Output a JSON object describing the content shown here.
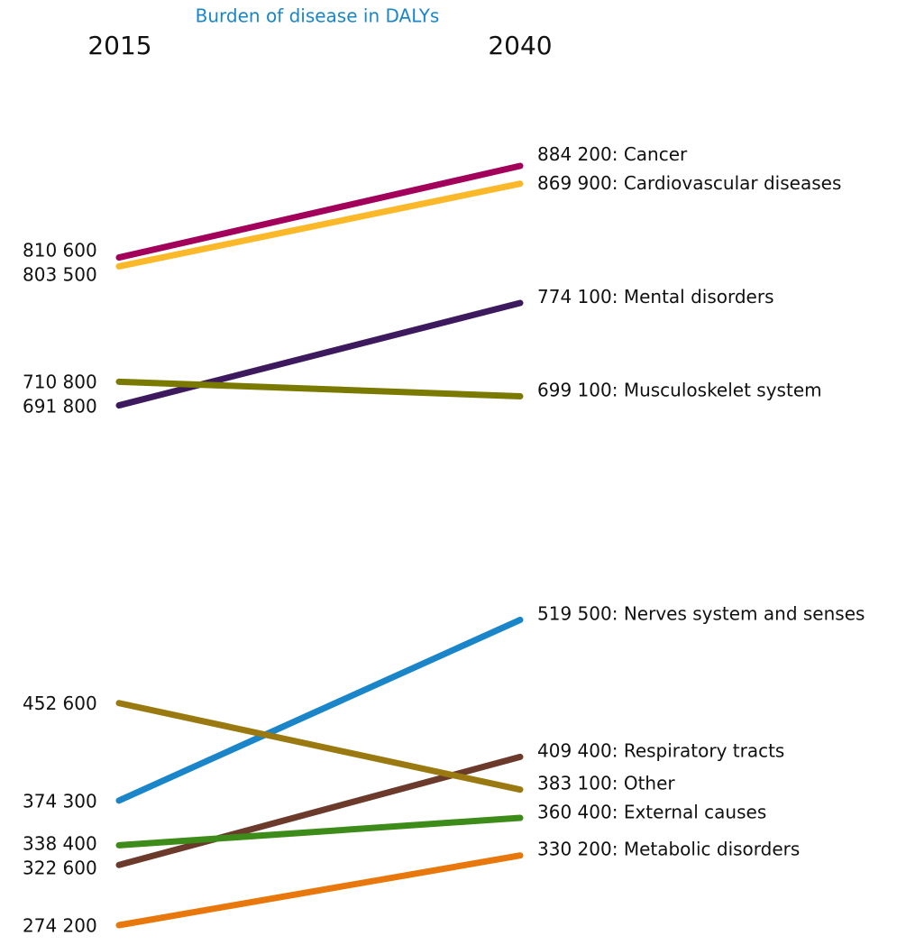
{
  "chart_data": {
    "type": "slope",
    "title": "Burden of disease in DALYs",
    "title_color": "#1a85c8",
    "categories": [
      "2015",
      "2040"
    ],
    "ylim": [
      274200,
      884200
    ],
    "label_separator": ": ",
    "series": [
      {
        "name": "Cancer",
        "color": "#a3005c",
        "values": [
          810600,
          884200
        ],
        "value_labels": [
          "810 600",
          "884 200"
        ]
      },
      {
        "name": "Cardiovascular diseases",
        "color": "#fbb829",
        "values": [
          803500,
          869900
        ],
        "value_labels": [
          "803 500",
          "869 900"
        ]
      },
      {
        "name": "Mental disorders",
        "color": "#3d1a5e",
        "values": [
          691800,
          774100
        ],
        "value_labels": [
          "691 800",
          "774 100"
        ]
      },
      {
        "name": "Musculoskelet system",
        "color": "#7a7a00",
        "values": [
          710800,
          699100
        ],
        "value_labels": [
          "710 800",
          "699 100"
        ]
      },
      {
        "name": "Nerves system and senses",
        "color": "#1a85c8",
        "values": [
          374300,
          519500
        ],
        "value_labels": [
          "374 300",
          "519 500"
        ]
      },
      {
        "name": "Respiratory tracts",
        "color": "#6b3a2a",
        "values": [
          322600,
          409400
        ],
        "value_labels": [
          "322 600",
          "409 400"
        ]
      },
      {
        "name": "Other",
        "color": "#9a7a10",
        "values": [
          452600,
          383100
        ],
        "value_labels": [
          "452 600",
          "383 100"
        ]
      },
      {
        "name": "External causes",
        "color": "#3d8c1a",
        "values": [
          338400,
          360400
        ],
        "value_labels": [
          "338 400",
          "360 400"
        ]
      },
      {
        "name": "Metabolic disorders",
        "color": "#e8780c",
        "values": [
          274200,
          330200
        ],
        "value_labels": [
          "274 200",
          "330 200"
        ]
      }
    ]
  }
}
